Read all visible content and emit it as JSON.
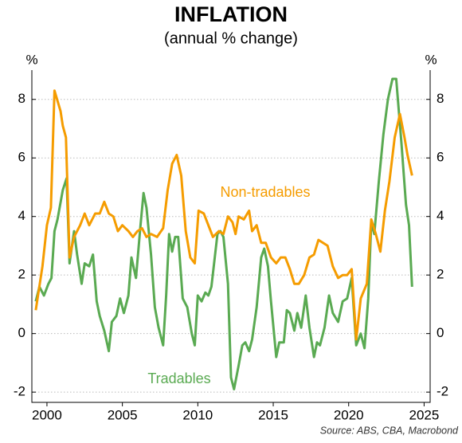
{
  "chart_data": {
    "type": "line",
    "title": "INFLATION",
    "subtitle": "(annual % change)",
    "y_label": "%",
    "y2_label": "%",
    "source": "Source: ABS, CBA, Macrobond",
    "xlim": [
      1999,
      2025.4
    ],
    "xticks": [
      2000,
      2005,
      2010,
      2015,
      2020,
      2025
    ],
    "ylim": [
      -2.35,
      9
    ],
    "yticks": [
      -2,
      0,
      2,
      4,
      6,
      8
    ],
    "y2lim": [
      -2.35,
      9
    ],
    "y2ticks": [
      -2,
      0,
      2,
      4,
      6,
      8
    ],
    "grid": true,
    "series": [
      {
        "name": "Non-tradables",
        "color": "#f59c00",
        "x": [
          1999.26,
          1999.7,
          2000,
          2000.26,
          2000.5,
          2000.9,
          2001.05,
          2001.26,
          2001.5,
          2001.8,
          2002.2,
          2002.5,
          2002.8,
          2003.2,
          2003.5,
          2003.8,
          2004.1,
          2004.4,
          2004.7,
          2005.0,
          2005.4,
          2005.7,
          2006.0,
          2006.3,
          2006.6,
          2006.9,
          2007.3,
          2007.7,
          2008.0,
          2008.3,
          2008.6,
          2008.9,
          2009.2,
          2009.5,
          2009.8,
          2010.05,
          2010.4,
          2010.7,
          2011.0,
          2011.4,
          2011.7,
          2012.0,
          2012.3,
          2012.5,
          2012.7,
          2013.05,
          2013.4,
          2013.6,
          2013.9,
          2014.2,
          2014.5,
          2014.85,
          2015.2,
          2015.5,
          2015.8,
          2016.1,
          2016.4,
          2016.7,
          2017.05,
          2017.4,
          2017.7,
          2018.0,
          2018.3,
          2018.6,
          2018.95,
          2019.3,
          2019.6,
          2019.9,
          2020.2,
          2020.5,
          2020.8,
          2021.2,
          2021.5,
          2021.8,
          2022.1,
          2022.4,
          2022.7,
          2023.05,
          2023.4,
          2023.7,
          2023.9,
          2024.2
        ],
        "values": [
          0.8,
          2.3,
          3.7,
          4.3,
          8.3,
          7.6,
          7.1,
          6.7,
          2.6,
          3.3,
          3.7,
          4.1,
          3.7,
          4.1,
          4.1,
          4.5,
          4.1,
          4.0,
          3.5,
          3.7,
          3.5,
          3.3,
          3.5,
          3.6,
          3.3,
          3.4,
          3.3,
          3.6,
          4.9,
          5.8,
          6.1,
          5.4,
          3.5,
          2.6,
          2.4,
          4.2,
          4.1,
          3.7,
          3.3,
          3.5,
          3.4,
          4.0,
          3.8,
          3.4,
          4.0,
          3.9,
          4.2,
          3.5,
          3.7,
          3.1,
          3.1,
          2.6,
          2.4,
          2.6,
          2.6,
          2.2,
          1.7,
          1.7,
          2.0,
          2.6,
          2.7,
          3.2,
          3.1,
          3.0,
          2.3,
          1.9,
          2.0,
          2.0,
          2.2,
          -0.2,
          1.2,
          1.7,
          3.9,
          3.4,
          2.8,
          4.2,
          5.2,
          6.7,
          7.5,
          6.7,
          6.1,
          5.4
        ]
      },
      {
        "name": "Tradables",
        "color": "#5aaa52",
        "x": [
          1999.26,
          1999.5,
          1999.8,
          2000.1,
          2000.3,
          2000.5,
          2000.7,
          2001.05,
          2001.3,
          2001.5,
          2001.8,
          2002.0,
          2002.3,
          2002.5,
          2002.8,
          2003.05,
          2003.3,
          2003.5,
          2003.8,
          2004.1,
          2004.3,
          2004.6,
          2004.85,
          2005.1,
          2005.4,
          2005.6,
          2005.9,
          2006.2,
          2006.4,
          2006.6,
          2006.9,
          2007.15,
          2007.4,
          2007.7,
          2007.9,
          2008.1,
          2008.3,
          2008.5,
          2008.7,
          2009.0,
          2009.3,
          2009.6,
          2009.8,
          2010.0,
          2010.25,
          2010.5,
          2010.7,
          2010.9,
          2011.3,
          2011.5,
          2011.7,
          2012.0,
          2012.2,
          2012.4,
          2012.7,
          2012.95,
          2013.15,
          2013.4,
          2013.6,
          2013.9,
          2014.2,
          2014.4,
          2014.65,
          2014.85,
          2015.2,
          2015.4,
          2015.7,
          2015.9,
          2016.1,
          2016.4,
          2016.6,
          2016.85,
          2017.15,
          2017.4,
          2017.7,
          2017.9,
          2018.1,
          2018.4,
          2018.7,
          2018.95,
          2019.3,
          2019.6,
          2019.9,
          2020.2,
          2020.5,
          2020.8,
          2021.05,
          2021.3,
          2021.5,
          2021.7,
          2022.0,
          2022.3,
          2022.6,
          2022.9,
          2023.15,
          2023.5,
          2023.8,
          2024.0,
          2024.2
        ],
        "values": [
          1.1,
          1.6,
          1.3,
          1.7,
          1.9,
          3.5,
          3.9,
          4.9,
          5.3,
          2.4,
          3.5,
          2.7,
          1.7,
          2.4,
          2.3,
          2.7,
          1.1,
          0.6,
          0.1,
          -0.6,
          0.4,
          0.6,
          1.2,
          0.7,
          1.3,
          2.6,
          1.9,
          3.7,
          4.8,
          4.3,
          2.7,
          0.9,
          0.2,
          -0.4,
          1.3,
          3.4,
          2.8,
          3.3,
          3.3,
          1.2,
          0.9,
          0,
          -0.4,
          1.3,
          1.1,
          1.4,
          1.3,
          1.6,
          3.4,
          3.5,
          3.3,
          1.7,
          -1.5,
          -1.9,
          -1.1,
          -0.4,
          -0.3,
          -0.6,
          -0.2,
          0.9,
          2.6,
          2.9,
          2.3,
          1.1,
          -0.8,
          -0.3,
          -0.3,
          0.8,
          0.7,
          0.1,
          0.7,
          0.2,
          1.3,
          0.2,
          -0.8,
          -0.3,
          -0.4,
          0.2,
          1.3,
          0.7,
          0.4,
          1.1,
          1.2,
          1.9,
          -0.4,
          0,
          -0.5,
          1.2,
          3.8,
          3.4,
          5.2,
          6.8,
          8.0,
          8.7,
          8.7,
          6.5,
          4.4,
          3.7,
          1.6
        ]
      }
    ]
  }
}
